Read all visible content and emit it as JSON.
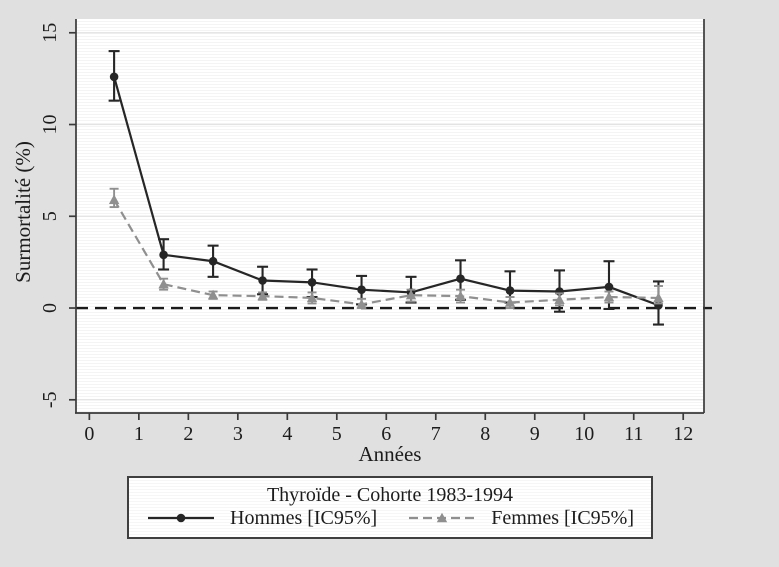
{
  "chart_data": {
    "type": "line",
    "title": "Thyroïde - Cohorte 1983-1994",
    "xlabel": "Années",
    "ylabel": "Surmortalité (%)",
    "xlim": [
      -0.27,
      12.42
    ],
    "ylim": [
      -5.72,
      15.75
    ],
    "xticks": [
      0,
      1,
      2,
      3,
      4,
      5,
      6,
      7,
      8,
      9,
      10,
      11,
      12
    ],
    "yticks": [
      -5,
      0,
      5,
      10,
      15
    ],
    "grid": true,
    "zero_line": true,
    "legend_position": "bottom",
    "x": [
      0.5,
      1.5,
      2.5,
      3.5,
      4.5,
      5.5,
      6.5,
      7.5,
      8.5,
      9.5,
      10.5,
      11.5
    ],
    "series": [
      {
        "name": "Hommes [IC95%]",
        "color": "#262626",
        "marker": "circle",
        "dash": "solid",
        "y": [
          12.6,
          2.9,
          2.55,
          1.5,
          1.4,
          1.0,
          0.85,
          1.6,
          0.95,
          0.9,
          1.15,
          0.15
        ],
        "ci_low": [
          11.3,
          2.1,
          1.7,
          0.75,
          0.6,
          0.2,
          0.3,
          0.45,
          0.3,
          -0.2,
          -0.05,
          -0.9
        ],
        "ci_high": [
          14.0,
          3.75,
          3.4,
          2.25,
          2.1,
          1.75,
          1.7,
          2.6,
          2.0,
          2.05,
          2.55,
          1.45
        ]
      },
      {
        "name": "Femmes [IC95%]",
        "color": "#8f8f8f",
        "marker": "triangle",
        "dash": "dashed",
        "y": [
          5.9,
          1.3,
          0.7,
          0.65,
          0.55,
          0.2,
          0.7,
          0.65,
          0.3,
          0.45,
          0.6,
          0.55
        ],
        "ci_low": [
          5.5,
          1.0,
          0.5,
          0.45,
          0.25,
          0.0,
          0.35,
          0.3,
          0.0,
          0.15,
          0.3,
          0.25
        ],
        "ci_high": [
          6.5,
          1.6,
          0.9,
          0.85,
          0.85,
          0.5,
          1.0,
          1.0,
          0.6,
          0.8,
          0.9,
          1.2
        ]
      }
    ]
  },
  "colors": {
    "background": "#e0e0e0",
    "plot_background": "#ffffff",
    "grid": "#e3e3e3",
    "zero_line": "#1a1a1a",
    "axis": "#3a3a3a",
    "text": "#1c1c1c",
    "legend_border": "#3f3f3f"
  }
}
